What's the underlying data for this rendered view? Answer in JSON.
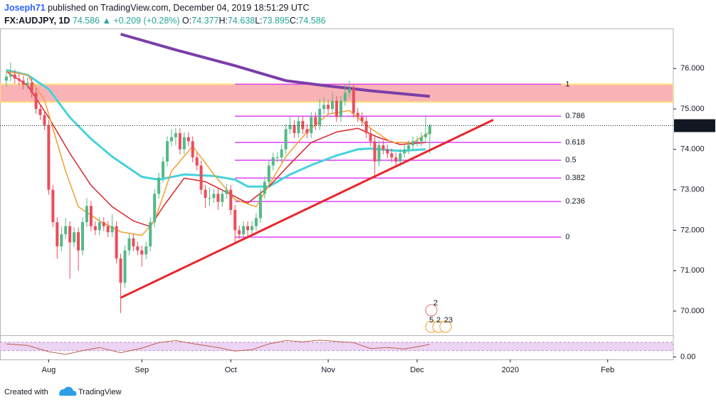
{
  "header": {
    "user": "Joseph71",
    "published": "published on TradingView.com, December 04, 2019 18:51:29 UTC",
    "symbol": "FX:AUDJPY, 1D",
    "last": "74.586",
    "change": "▲ +0.209 (+0.28%)",
    "quote": [
      {
        "k": "O:",
        "v": "74.377"
      },
      {
        "k": "H:",
        "v": "74.638"
      },
      {
        "k": "L:",
        "v": "73.895"
      },
      {
        "k": "C:",
        "v": "74.586"
      }
    ]
  },
  "chart_data": {
    "type": "candlestick",
    "up_color": "#53b987",
    "down_color": "#eb4d5c",
    "xlim": [
      -1.5,
      157.5
    ],
    "xticks": [
      {
        "value": 10,
        "label": "Aug"
      },
      {
        "value": 32,
        "label": "Sep"
      },
      {
        "value": 53,
        "label": "Oct"
      },
      {
        "value": 76,
        "label": "Nov"
      },
      {
        "value": 97,
        "label": "Dec"
      },
      {
        "value": 119,
        "label": "2020"
      },
      {
        "value": 142,
        "label": "Feb"
      }
    ],
    "ylim": [
      69.42,
      76.99
    ],
    "yticks": [
      {
        "value": 70,
        "label": "70.000"
      },
      {
        "value": 71,
        "label": "71.000"
      },
      {
        "value": 72,
        "label": "72.000"
      },
      {
        "value": 73,
        "label": "73.000"
      },
      {
        "value": 74,
        "label": "74.000"
      },
      {
        "value": 75,
        "label": "75.000"
      },
      {
        "value": 76,
        "label": "76.000"
      }
    ],
    "candles": [
      [
        75.7,
        75.95,
        75.55,
        75.8
      ],
      [
        75.8,
        76.15,
        75.68,
        75.85
      ],
      [
        75.85,
        75.97,
        75.63,
        75.75
      ],
      [
        75.75,
        75.87,
        75.58,
        75.7
      ],
      [
        75.7,
        75.82,
        75.48,
        75.6
      ],
      [
        75.6,
        75.77,
        75.48,
        75.65
      ],
      [
        75.65,
        75.77,
        75.28,
        75.4
      ],
      [
        75.4,
        75.52,
        74.88,
        75.0
      ],
      [
        75.0,
        75.12,
        74.73,
        74.85
      ],
      [
        74.85,
        74.97,
        74.48,
        74.6
      ],
      [
        74.6,
        74.72,
        72.88,
        73.0
      ],
      [
        73.0,
        73.12,
        72.08,
        72.2
      ],
      [
        72.2,
        72.32,
        71.3,
        71.6
      ],
      [
        71.6,
        72.1,
        71.48,
        71.9
      ],
      [
        71.9,
        72.3,
        71.78,
        72.1
      ],
      [
        72.1,
        72.22,
        70.8,
        71.7
      ],
      [
        71.7,
        72.07,
        71.58,
        71.95
      ],
      [
        71.95,
        72.07,
        71.0,
        71.5
      ],
      [
        71.5,
        72.32,
        71.38,
        72.2
      ],
      [
        72.2,
        72.8,
        72.08,
        72.6
      ],
      [
        72.6,
        72.72,
        71.98,
        72.1
      ],
      [
        72.1,
        72.22,
        71.88,
        72.0
      ],
      [
        72.0,
        72.32,
        71.88,
        72.2
      ],
      [
        72.2,
        72.32,
        71.98,
        72.1
      ],
      [
        72.1,
        72.22,
        71.83,
        71.95
      ],
      [
        71.95,
        72.4,
        71.83,
        72.1
      ],
      [
        72.1,
        72.22,
        71.18,
        71.3
      ],
      [
        71.3,
        71.42,
        69.95,
        70.7
      ],
      [
        70.7,
        71.62,
        70.58,
        71.5
      ],
      [
        71.5,
        71.92,
        71.38,
        71.8
      ],
      [
        71.8,
        71.92,
        71.48,
        71.6
      ],
      [
        71.6,
        71.72,
        71.38,
        71.5
      ],
      [
        71.5,
        71.62,
        71.1,
        71.4
      ],
      [
        71.4,
        71.72,
        71.28,
        71.6
      ],
      [
        71.6,
        72.32,
        71.48,
        72.2
      ],
      [
        72.2,
        73.02,
        72.08,
        72.9
      ],
      [
        72.9,
        73.42,
        72.78,
        73.3
      ],
      [
        73.3,
        73.82,
        73.18,
        73.7
      ],
      [
        73.7,
        74.32,
        73.58,
        74.2
      ],
      [
        74.2,
        74.5,
        74.08,
        74.3
      ],
      [
        74.3,
        74.52,
        74.1,
        74.4
      ],
      [
        74.4,
        74.52,
        73.88,
        74.0
      ],
      [
        74.0,
        74.42,
        73.88,
        74.3
      ],
      [
        74.3,
        74.42,
        74.08,
        74.2
      ],
      [
        74.2,
        74.32,
        73.68,
        73.8
      ],
      [
        73.8,
        73.92,
        73.48,
        73.6
      ],
      [
        73.6,
        73.72,
        72.88,
        73.0
      ],
      [
        73.0,
        73.12,
        72.55,
        72.8
      ],
      [
        72.8,
        73.05,
        72.6,
        72.8
      ],
      [
        72.8,
        73.02,
        72.68,
        72.9
      ],
      [
        72.9,
        73.02,
        72.5,
        72.7
      ],
      [
        72.7,
        73.02,
        72.58,
        72.9
      ],
      [
        72.9,
        73.15,
        72.78,
        73.0
      ],
      [
        73.0,
        73.12,
        72.38,
        72.5
      ],
      [
        72.5,
        72.62,
        71.7,
        72.0
      ],
      [
        72.0,
        72.12,
        71.78,
        71.9
      ],
      [
        71.9,
        72.22,
        71.78,
        72.1
      ],
      [
        72.1,
        72.22,
        71.8,
        72.0
      ],
      [
        72.0,
        72.22,
        71.88,
        72.1
      ],
      [
        72.1,
        72.42,
        71.98,
        72.3
      ],
      [
        72.3,
        73.02,
        72.18,
        72.9
      ],
      [
        72.9,
        73.32,
        72.78,
        73.2
      ],
      [
        73.2,
        73.72,
        73.08,
        73.6
      ],
      [
        73.6,
        73.92,
        73.48,
        73.8
      ],
      [
        73.8,
        73.92,
        73.68,
        73.8
      ],
      [
        73.8,
        74.12,
        73.68,
        74.0
      ],
      [
        74.0,
        74.62,
        73.88,
        74.5
      ],
      [
        74.5,
        74.8,
        74.38,
        74.6
      ],
      [
        74.6,
        74.72,
        74.28,
        74.4
      ],
      [
        74.4,
        74.82,
        74.28,
        74.7
      ],
      [
        74.7,
        74.82,
        74.38,
        74.5
      ],
      [
        74.5,
        74.62,
        74.28,
        74.4
      ],
      [
        74.4,
        74.92,
        74.28,
        74.8
      ],
      [
        74.8,
        74.92,
        74.48,
        74.6
      ],
      [
        74.6,
        75.25,
        74.48,
        75.0
      ],
      [
        75.0,
        75.3,
        74.88,
        75.1
      ],
      [
        75.1,
        75.22,
        74.88,
        75.0
      ],
      [
        75.0,
        75.4,
        74.88,
        75.2
      ],
      [
        75.2,
        75.32,
        74.68,
        74.8
      ],
      [
        74.8,
        75.32,
        74.68,
        75.2
      ],
      [
        75.2,
        75.6,
        75.08,
        75.4
      ],
      [
        75.4,
        75.7,
        75.28,
        75.5
      ],
      [
        75.5,
        75.62,
        74.78,
        74.9
      ],
      [
        74.9,
        75.02,
        74.68,
        74.8
      ],
      [
        74.8,
        74.92,
        74.58,
        74.7
      ],
      [
        74.7,
        74.82,
        74.28,
        74.4
      ],
      [
        74.4,
        74.52,
        74.08,
        74.2
      ],
      [
        74.2,
        74.32,
        73.35,
        73.7
      ],
      [
        73.7,
        74.22,
        73.58,
        74.1
      ],
      [
        74.1,
        74.22,
        73.88,
        74.0
      ],
      [
        74.0,
        74.12,
        73.78,
        73.9
      ],
      [
        73.9,
        74.02,
        73.68,
        73.8
      ],
      [
        73.8,
        73.92,
        73.58,
        73.7
      ],
      [
        73.7,
        74.02,
        73.58,
        73.9
      ],
      [
        73.9,
        74.12,
        73.78,
        74.0
      ],
      [
        74.0,
        74.22,
        73.88,
        74.1
      ],
      [
        74.1,
        74.32,
        73.98,
        74.2
      ],
      [
        74.2,
        74.32,
        74.08,
        74.2
      ],
      [
        74.2,
        74.42,
        74.08,
        74.3
      ],
      [
        74.3,
        74.85,
        74.18,
        74.38
      ],
      [
        74.377,
        74.638,
        73.895,
        74.586
      ]
    ],
    "lines": [
      {
        "color": "#7b3fa8",
        "width": 4,
        "x": [
          27,
          40,
          54,
          66,
          75,
          86,
          100
        ],
        "values": [
          76.85,
          76.46,
          76.07,
          75.7,
          75.58,
          75.45,
          75.31
        ]
      },
      {
        "color": "#45d2dc",
        "width": 3,
        "x": [
          0,
          5,
          10,
          15,
          20,
          25,
          32,
          36,
          42,
          49,
          54,
          57,
          62,
          67,
          72,
          78,
          83,
          86,
          93,
          99
        ],
        "values": [
          75.96,
          75.84,
          75.49,
          74.79,
          74.26,
          73.82,
          73.32,
          73.25,
          73.38,
          73.34,
          73.25,
          73.08,
          73.08,
          73.38,
          73.61,
          73.85,
          74.0,
          74.02,
          73.96,
          74.0
        ]
      },
      {
        "color": "#d7262e",
        "width": 1.5,
        "x": [
          0,
          5,
          10,
          15,
          20,
          25,
          30,
          34,
          37,
          42,
          47,
          52,
          57,
          62,
          67,
          72,
          78,
          83,
          88,
          93,
          99
        ],
        "values": [
          75.93,
          75.58,
          74.79,
          73.9,
          73.11,
          72.58,
          72.23,
          72.09,
          72.58,
          73.29,
          73.2,
          72.94,
          72.67,
          73.08,
          73.64,
          74.17,
          74.43,
          74.52,
          74.29,
          74.12,
          74.17
        ]
      },
      {
        "color": "#f0a030",
        "width": 1.5,
        "x": [
          0,
          5,
          9,
          14,
          17,
          22,
          27,
          32,
          35,
          39,
          44,
          49,
          54,
          59,
          62,
          66,
          71,
          76,
          81,
          86,
          91,
          96,
          100
        ],
        "values": [
          75.93,
          75.84,
          75.22,
          73.46,
          72.58,
          72.23,
          71.96,
          71.87,
          72.23,
          73.46,
          74.08,
          73.38,
          72.76,
          72.58,
          73.11,
          73.82,
          74.43,
          74.87,
          74.96,
          74.52,
          74.17,
          74.17,
          74.43
        ]
      }
    ],
    "trendline": {
      "color": "#e8262c",
      "x": [
        27,
        115
      ],
      "values": [
        70.33,
        74.73
      ]
    },
    "fib": {
      "color": "#e040fb",
      "x": [
        54,
        131
      ],
      "ratios": [
        1,
        0.786,
        0.618,
        0.5,
        0.382,
        0.236,
        0
      ],
      "prices": [
        75.61,
        74.82,
        74.17,
        73.73,
        73.29,
        72.71,
        71.83
      ]
    },
    "zone": {
      "range": [
        75.17,
        75.61
      ],
      "fill": "#f9b3b6",
      "border": "#ffe07a"
    },
    "last_price": 74.586,
    "events": [
      "2",
      "5",
      "2",
      "23"
    ],
    "pane": {
      "ylim": [
        -0.12,
        1.0
      ],
      "yticks": [
        {
          "value": 0,
          "label": "0.00"
        }
      ],
      "band": [
        0.3,
        0.7
      ],
      "color": "#c0604a",
      "x": [
        0,
        5,
        10,
        14,
        18,
        22,
        27,
        32,
        36,
        40,
        45,
        50,
        54,
        58,
        62,
        66,
        70,
        74,
        78,
        82,
        86,
        90,
        94,
        98,
        100
      ],
      "values": [
        0.62,
        0.55,
        0.25,
        0.12,
        0.3,
        0.45,
        0.2,
        0.42,
        0.68,
        0.78,
        0.6,
        0.45,
        0.28,
        0.35,
        0.62,
        0.78,
        0.72,
        0.8,
        0.74,
        0.68,
        0.4,
        0.45,
        0.38,
        0.52,
        0.6
      ]
    }
  },
  "footer": {
    "created": "Created with",
    "brand": "TradingView"
  }
}
